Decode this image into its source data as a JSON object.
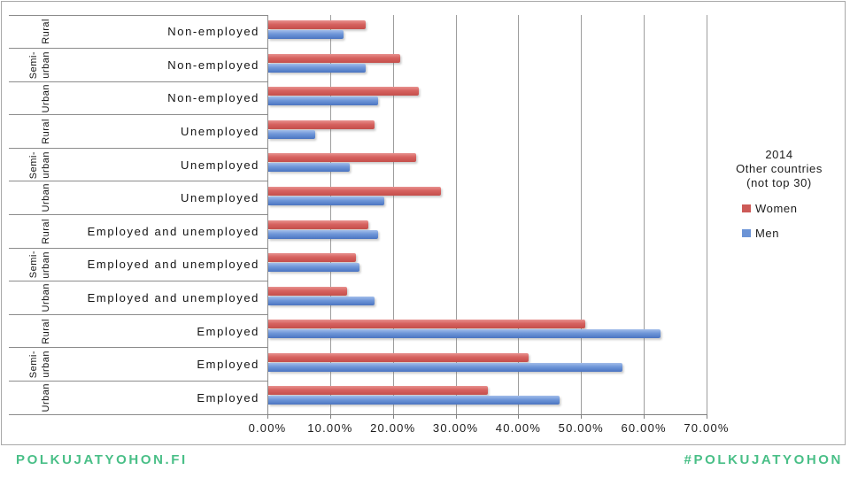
{
  "chart_data": {
    "type": "bar",
    "orientation": "horizontal",
    "title": "2014 Other countries (not top 30)",
    "grid": true,
    "legend_position": "right",
    "categories": [
      {
        "area": "Rural",
        "area_lines": [
          "Rural"
        ],
        "status": "Non-employed"
      },
      {
        "area": "Semi-urban",
        "area_lines": [
          "Semi-",
          "urban"
        ],
        "status": "Non-employed"
      },
      {
        "area": "Urban",
        "area_lines": [
          "Urban"
        ],
        "status": "Non-employed"
      },
      {
        "area": "Rural",
        "area_lines": [
          "Rural"
        ],
        "status": "Unemployed"
      },
      {
        "area": "Semi-urban",
        "area_lines": [
          "Semi-",
          "urban"
        ],
        "status": "Unemployed"
      },
      {
        "area": "Urban",
        "area_lines": [
          "Urban"
        ],
        "status": "Unemployed"
      },
      {
        "area": "Rural",
        "area_lines": [
          "Rural"
        ],
        "status": "Employed and unemployed"
      },
      {
        "area": "Semi-urban",
        "area_lines": [
          "Semi-",
          "urban"
        ],
        "status": "Employed and unemployed"
      },
      {
        "area": "Urban",
        "area_lines": [
          "Urban"
        ],
        "status": "Employed and unemployed"
      },
      {
        "area": "Rural",
        "area_lines": [
          "Rural"
        ],
        "status": "Employed"
      },
      {
        "area": "Semi-urban",
        "area_lines": [
          "Semi-",
          "urban"
        ],
        "status": "Employed"
      },
      {
        "area": "Urban",
        "area_lines": [
          "Urban"
        ],
        "status": "Employed"
      }
    ],
    "series": [
      {
        "name": "Women",
        "color": "#d6625f",
        "values": [
          15.5,
          21,
          24,
          17,
          23.5,
          27.5,
          16,
          14,
          12.5,
          50.5,
          41.5,
          35
        ]
      },
      {
        "name": "Men",
        "color": "#6e96d8",
        "values": [
          12,
          15.5,
          17.5,
          7.5,
          13,
          18.5,
          17.5,
          14.5,
          17,
          62.5,
          56.5,
          46.5
        ]
      }
    ],
    "x_axis": {
      "unit": "%",
      "min": 0,
      "max": 70,
      "tick_labels": [
        "0.00%",
        "10.00%",
        "20.00%",
        "30.00%",
        "40.00%",
        "50.00%",
        "60.00%",
        "70.00%"
      ]
    }
  },
  "legend": {
    "title_lines": [
      "2014",
      "Other countries",
      "(not top 30)"
    ],
    "items": [
      {
        "label": "Women",
        "color": "#cd5a57"
      },
      {
        "label": "Men",
        "color": "#6b93d6"
      }
    ]
  },
  "footer": {
    "left": "POLKUJATYOHON.FI",
    "right": "#POLKUJATYOHON",
    "color": "#49bf87"
  }
}
